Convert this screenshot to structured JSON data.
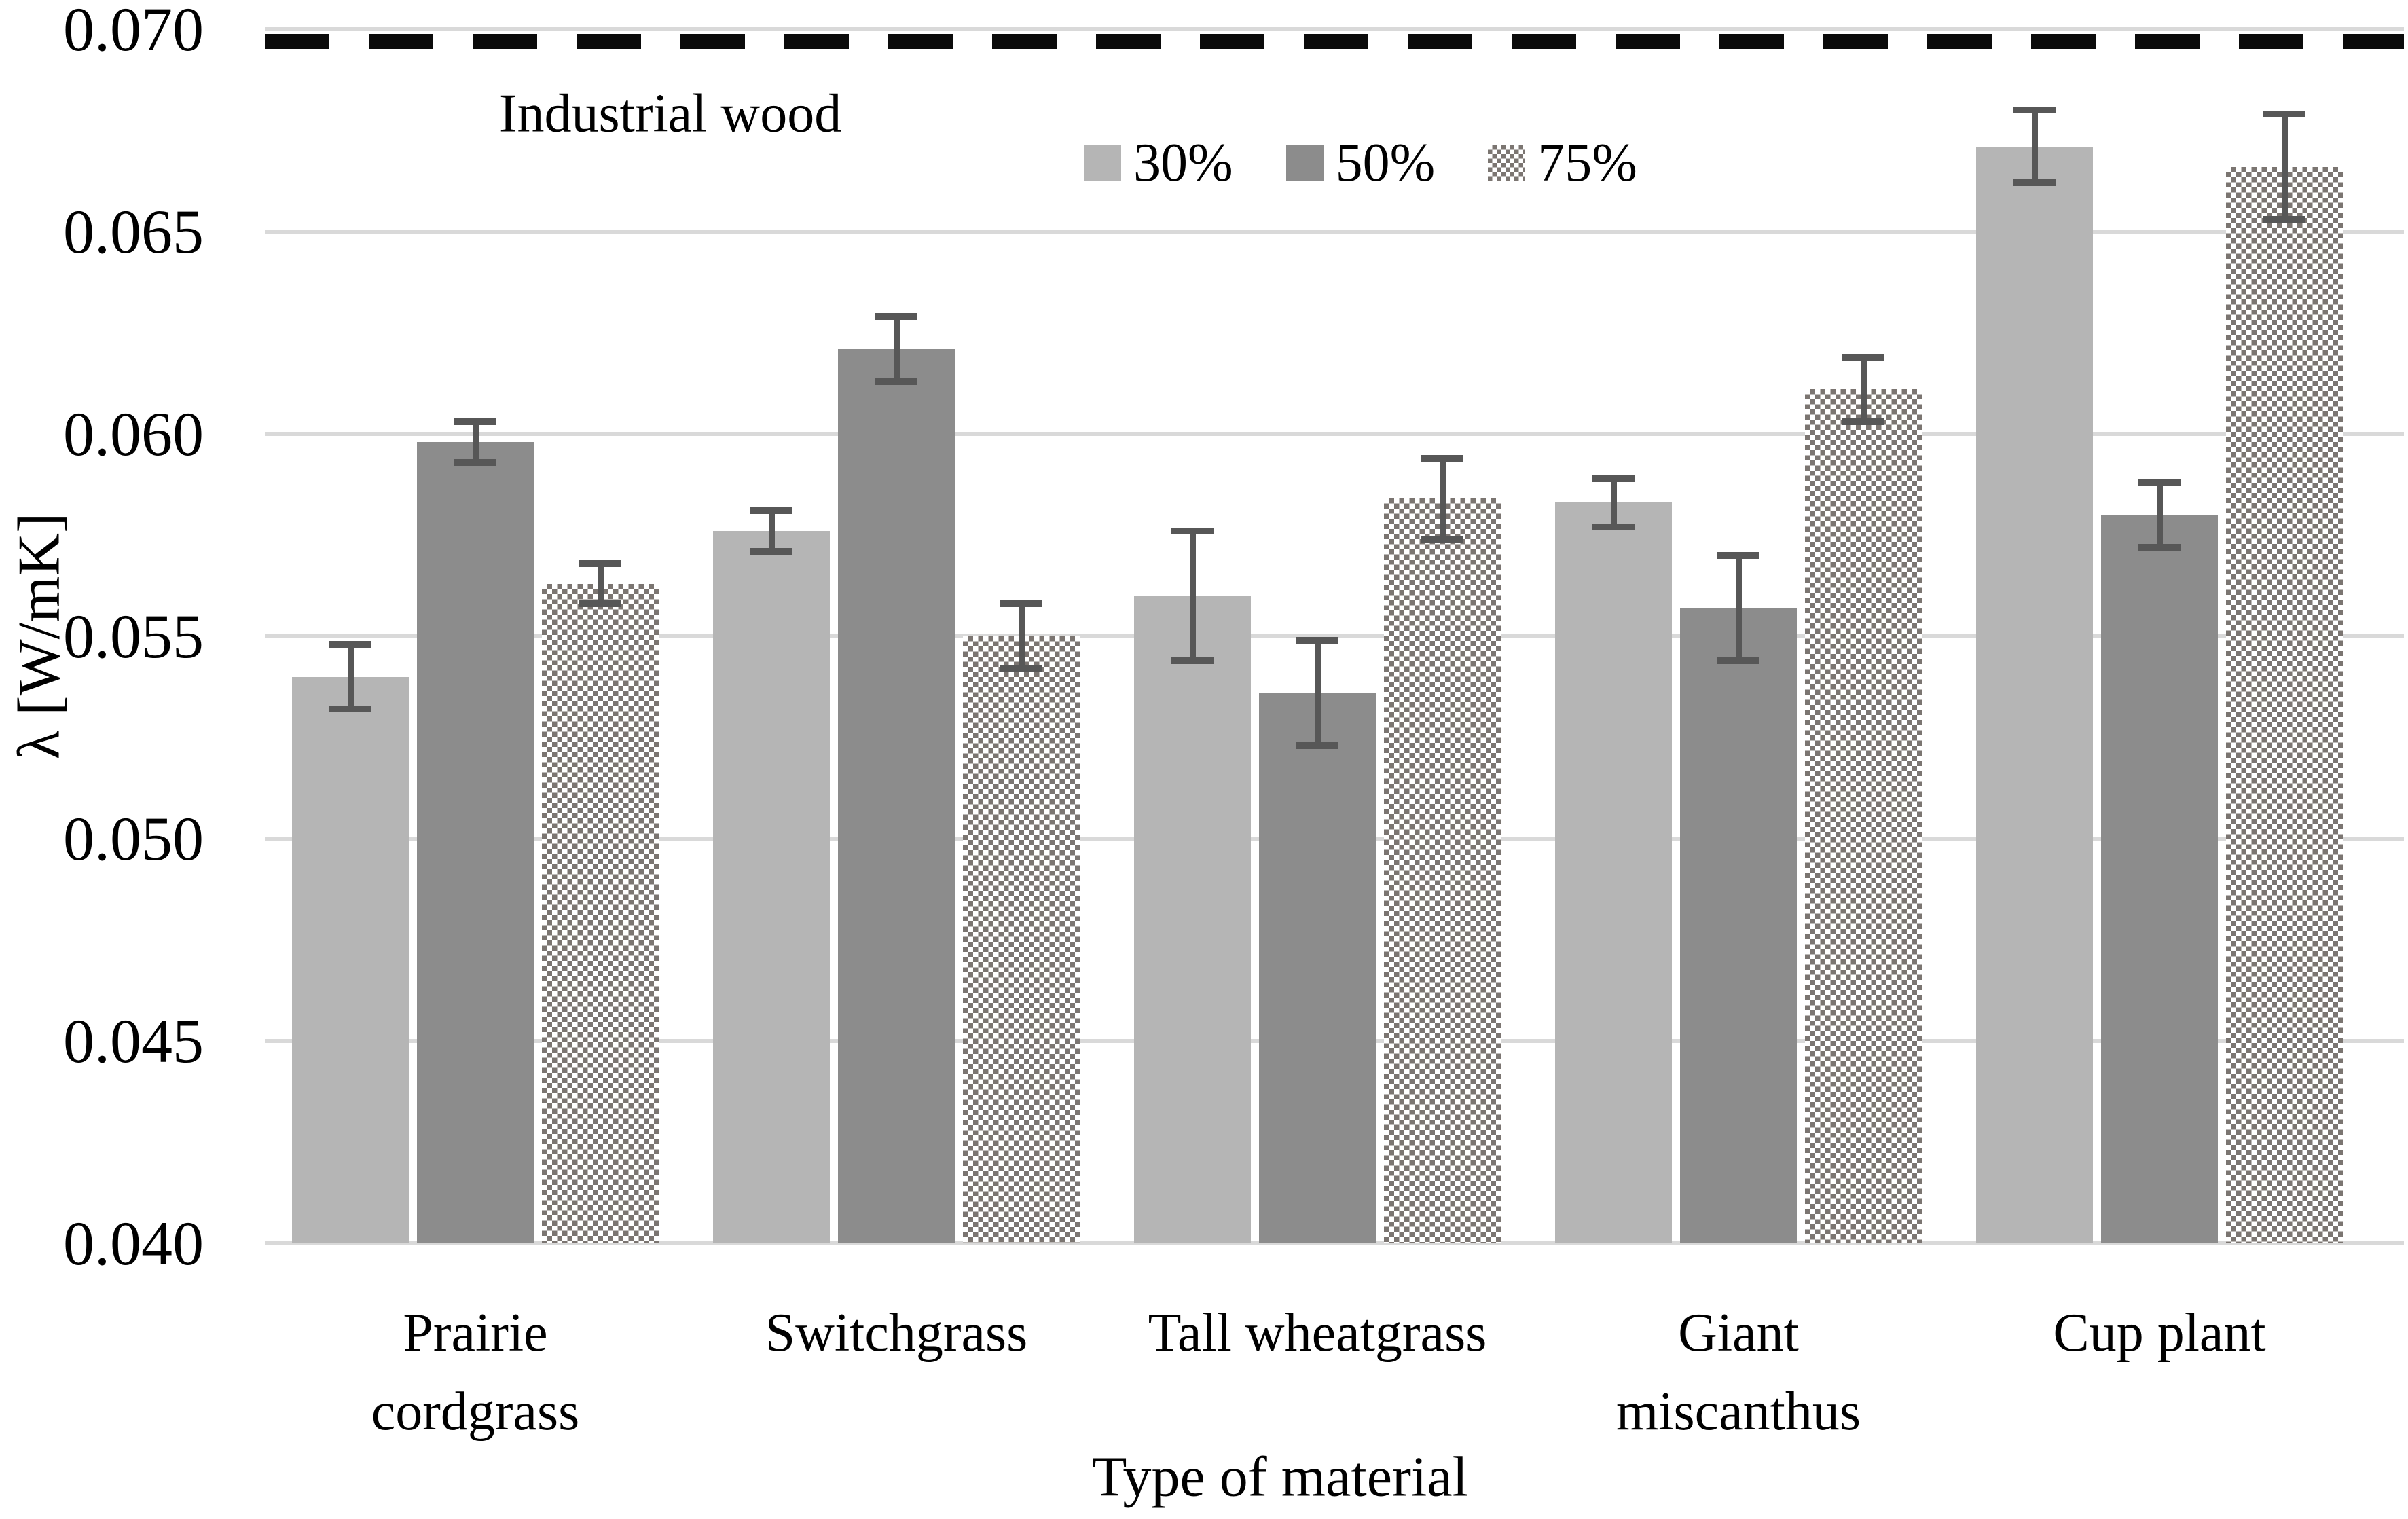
{
  "chart_data": {
    "type": "bar",
    "title": "",
    "xlabel": "Type of material",
    "ylabel": "λ [W/mK]",
    "ylim": [
      0.04,
      0.07
    ],
    "yticks": [
      0.04,
      0.045,
      0.05,
      0.055,
      0.06,
      0.065,
      0.07
    ],
    "ytick_format_decimals": 3,
    "grid": true,
    "legend_position": "top-center",
    "categories": [
      "Prairie cordgrass",
      "Switchgrass",
      "Tall wheatgrass",
      "Giant miscanthus",
      "Cup plant"
    ],
    "categories_display": [
      "Prairie\ncordgrass",
      "Switchgrass",
      "Tall wheatgrass",
      "Giant\nmiscanthus",
      "Cup plant"
    ],
    "reference_line": {
      "label": "Industrial wood",
      "value": 0.0697,
      "style": "dashed",
      "color": "#0b0b0b"
    },
    "series": [
      {
        "name": "30%",
        "fill": "solid",
        "color": "#B5B5B5",
        "values": [
          0.054,
          0.0576,
          0.056,
          0.0583,
          0.0671
        ],
        "errors": [
          0.0008,
          0.0005,
          0.0016,
          0.0006,
          0.0009
        ]
      },
      {
        "name": "50%",
        "fill": "solid",
        "color": "#8C8C8C",
        "values": [
          0.0598,
          0.0621,
          0.0536,
          0.0557,
          0.058
        ],
        "errors": [
          0.0005,
          0.0008,
          0.0013,
          0.0013,
          0.0008
        ]
      },
      {
        "name": "75%",
        "fill": "checker-pattern",
        "color": "#7B7571",
        "values": [
          0.0563,
          0.055,
          0.0584,
          0.0611,
          0.0666
        ],
        "errors": [
          0.0005,
          0.0008,
          0.001,
          0.0008,
          0.0013
        ]
      }
    ],
    "error_bar_color": "#575757",
    "gridline_color": "#D9D9D9",
    "background_color": "#FFFFFF"
  }
}
